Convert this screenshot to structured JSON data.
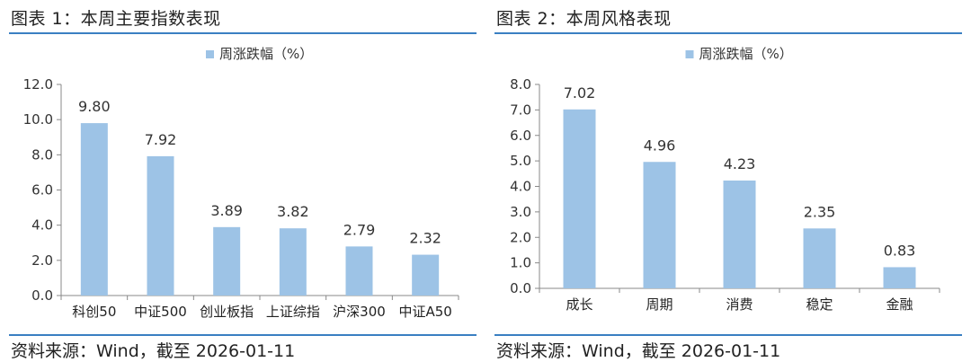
{
  "charts": [
    {
      "title": "图表 1：本周主要指数表现",
      "source": "资料来源：Wind，截至 2026-01-11",
      "chart_data": {
        "type": "bar",
        "legend": "周涨跌幅（%）",
        "legend_position": "top-center",
        "categories": [
          "科创50",
          "中证500",
          "创业板指",
          "上证综指",
          "沪深300",
          "中证A50"
        ],
        "series": [
          {
            "name": "周涨跌幅（%）",
            "values": [
              9.8,
              7.92,
              3.89,
              3.82,
              2.79,
              2.32
            ]
          }
        ],
        "value_labels": [
          "9.80",
          "7.92",
          "3.89",
          "3.82",
          "2.79",
          "2.32"
        ],
        "ylim": [
          0,
          12
        ],
        "yticks": [
          "0.0",
          "2.0",
          "4.0",
          "6.0",
          "8.0",
          "10.0",
          "12.0"
        ],
        "grid": false,
        "color": "#9dc3e6"
      }
    },
    {
      "title": "图表 2：本周风格表现",
      "source": "资料来源：Wind，截至 2026-01-11",
      "chart_data": {
        "type": "bar",
        "legend": "周涨跌幅（%）",
        "legend_position": "top-center",
        "categories": [
          "成长",
          "周期",
          "消费",
          "稳定",
          "金融"
        ],
        "series": [
          {
            "name": "周涨跌幅（%）",
            "values": [
              7.02,
              4.96,
              4.23,
              2.35,
              0.83
            ]
          }
        ],
        "value_labels": [
          "7.02",
          "4.96",
          "4.23",
          "2.35",
          "0.83"
        ],
        "ylim": [
          0,
          8
        ],
        "yticks": [
          "0.0",
          "1.0",
          "2.0",
          "3.0",
          "4.0",
          "5.0",
          "6.0",
          "7.0",
          "8.0"
        ],
        "grid": false,
        "color": "#9dc3e6"
      }
    }
  ],
  "colors": {
    "rule": "#3a7fc2",
    "bar": "#9dc3e6",
    "axis": "#888888"
  }
}
